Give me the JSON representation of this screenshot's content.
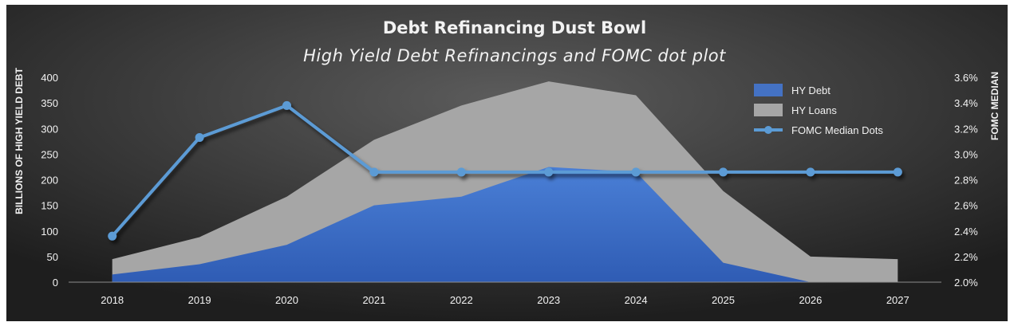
{
  "chart_data": {
    "type": "area",
    "title": "Debt Refinancing Dust Bowl",
    "subtitle": "High Yield Debt Refinancings and FOMC dot plot",
    "ylabel": "BILLIONS OF HIGH YIELD DEBT",
    "y2label": "FOMC MEDIAN",
    "categories": [
      "2018",
      "2019",
      "2020",
      "2021",
      "2022",
      "2023",
      "2024",
      "2025",
      "2026",
      "2027"
    ],
    "ylim": [
      0,
      400
    ],
    "y_ticks": [
      "0",
      "50",
      "100",
      "150",
      "200",
      "250",
      "300",
      "350",
      "400"
    ],
    "y2lim": [
      2.0,
      3.6
    ],
    "y2_ticks": [
      "2.0%",
      "2.2%",
      "2.4%",
      "2.6%",
      "2.8%",
      "3.0%",
      "3.2%",
      "3.4%",
      "3.6%"
    ],
    "series": [
      {
        "name": "HY Debt",
        "type": "area",
        "axis": "left",
        "color": "#4472c4",
        "values": [
          15,
          35,
          73,
          150,
          167,
          225,
          215,
          38,
          0,
          0
        ]
      },
      {
        "name": "HY Loans",
        "type": "area",
        "axis": "left",
        "color": "#a6a6a6",
        "values": [
          45,
          88,
          167,
          278,
          345,
          392,
          365,
          178,
          50,
          45
        ]
      },
      {
        "name": "FOMC Median Dots",
        "type": "line",
        "axis": "right",
        "color": "#5b9bd5",
        "values": [
          2.36,
          3.13,
          3.38,
          2.86,
          2.86,
          2.86,
          2.86,
          2.86,
          2.86,
          2.86
        ]
      }
    ],
    "legend_position": "top-right",
    "grid": false,
    "background_color": "#262626"
  }
}
